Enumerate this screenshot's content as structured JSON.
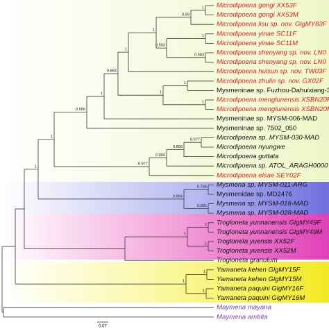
{
  "leaves": [
    "Microdipoena gongi XX53F",
    "Microdipoena gongi XX53M",
    "Microdipoena lisu sp. nov. GlgMY83F",
    "Microdipoena yinae SC11F",
    "Microdipoena yinae SC11M",
    "Microdipoena shenyang sp. nov. LN0",
    "Microdipoena shenyang sp. nov. LN0",
    "Microdipoena huisun sp. nov. TW03F",
    "Microdipoena zhulin sp. nov. GX02F",
    "Mysmeninae sp. Fuzhou-Dahuixiang-3",
    "Microdipoena menglunensis XSBN20F",
    "Microdipoena menglunensis XSBN20M",
    "Mysmeninae sp. MYSM-006-MAD",
    "Mysmeninae sp. 7502_050",
    "Microdipoena sp. MYSM-030-MAD",
    "Microdipoena nyungwe",
    "Microdipoena guttata",
    "Microdipoena sp. ATOL_ARAGH0000",
    "Microdipoena elsae SEY02F",
    "Mysmena sp. MYSM-011-ARG",
    "Mysmenidae sp. MD2476",
    "Mysmena sp. MYSM-018-MAD",
    "Mysmena sp. MYSM-028-MAD",
    "Trogloneta yunnanensis GlgMY49F",
    "Trogloneta yunnanensis GlgMY49M",
    "Trogloneta yuensis XX52F",
    "Trogloneta yuensis XX52M",
    "Trogloneta granulum",
    "Yamaneta kehen GlgMY15F",
    "Yamaneta kehen GlgMY15M",
    "Yamaneta paquini GlgMY16F",
    "Yamaneta paquini GlgMY16M",
    "Maymena mayana",
    "Maymena ambita"
  ],
  "supports": [
    "1",
    "0.99",
    "1",
    "0.983",
    "0.503",
    "1",
    "1",
    "1",
    "1",
    "1",
    "0.884",
    "1",
    "0.566",
    "0.977",
    "0.858",
    "0.904",
    "0.977",
    "1",
    "0.765",
    "0.901",
    "0.964",
    "1",
    "1",
    "1",
    "1",
    "1",
    "1",
    "1"
  ],
  "scale": "0.07"
}
